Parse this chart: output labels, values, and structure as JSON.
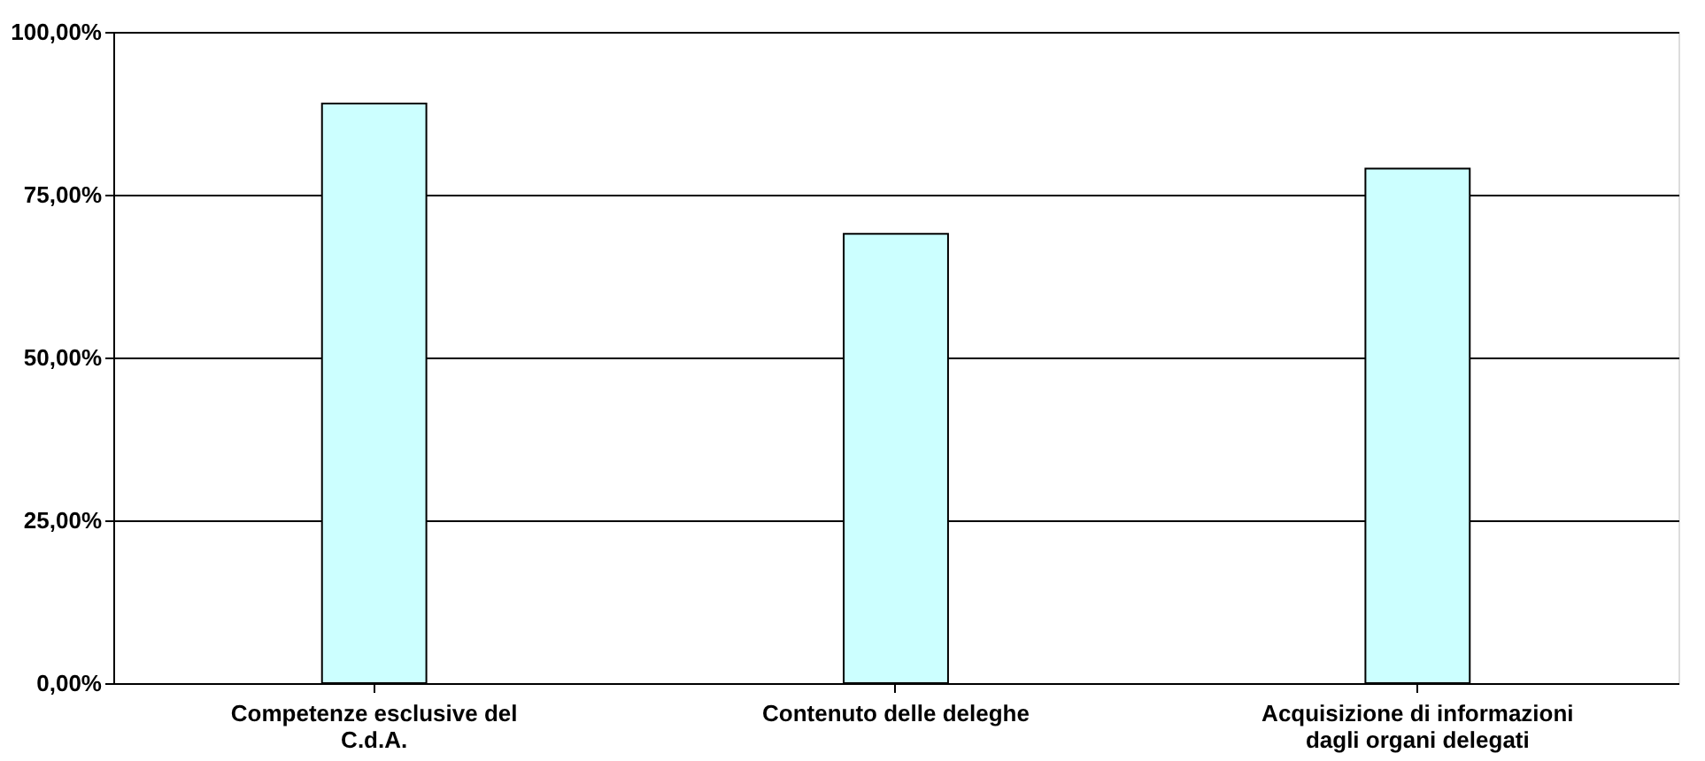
{
  "chart_data": {
    "type": "bar",
    "categories": [
      "Competenze esclusive del C.d.A.",
      "Contenuto delle deleghe",
      "Acquisizione di informazioni dagli organi delegati"
    ],
    "values": [
      89,
      69,
      79
    ],
    "color": "#ccffff",
    "ylim": [
      0,
      100
    ],
    "yticks": [
      {
        "value": 0,
        "label": "0,00%"
      },
      {
        "value": 25,
        "label": "25,00%"
      },
      {
        "value": 50,
        "label": "50,00%"
      },
      {
        "value": 75,
        "label": "75,00%"
      },
      {
        "value": 100,
        "label": "100,00%"
      }
    ],
    "grid": "y"
  }
}
